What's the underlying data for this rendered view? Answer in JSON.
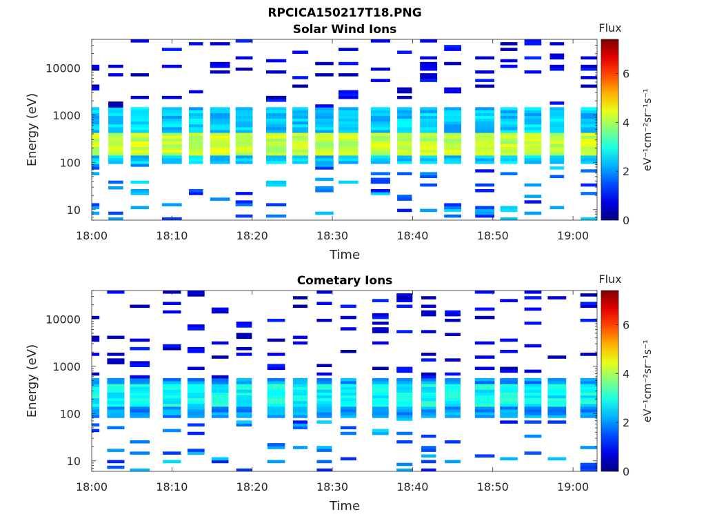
{
  "figure": {
    "file_title": "RPCICA150217T18.PNG",
    "colorbar_label": "Flux",
    "colorbar_unit": "eV⁻¹cm⁻²sr⁻¹s⁻¹",
    "colormap": "jet"
  },
  "chart_data": [
    {
      "type": "heatmap",
      "title": "Solar Wind Ions",
      "xlabel": "Time",
      "ylabel": "Energy (eV)",
      "y_scale": "log",
      "ylim": [
        6,
        40000
      ],
      "xlim": [
        "18:00",
        "19:03"
      ],
      "x_ticks": [
        "18:00",
        "18:10",
        "18:20",
        "18:30",
        "18:40",
        "18:50",
        "19:00"
      ],
      "y_ticks": [
        "10",
        "100",
        "1000",
        "10000"
      ],
      "colorbar": {
        "label": "Flux",
        "range": [
          0,
          7.4
        ],
        "ticks": [
          "0",
          "2",
          "4",
          "6"
        ]
      },
      "time_columns": [
        "18:00",
        "18:03",
        "18:06",
        "18:10",
        "18:13",
        "18:16",
        "18:19",
        "18:23",
        "18:26",
        "18:29",
        "18:32",
        "18:36",
        "18:39",
        "18:42",
        "18:45",
        "18:49",
        "18:52",
        "18:55",
        "18:58",
        "19:02"
      ],
      "energy_band": {
        "core_low_eV": 100,
        "core_high_eV": 1500,
        "peak_low_eV": 150,
        "peak_high_eV": 450,
        "peak_flux": 4.6,
        "core_flux": 2.8
      }
    },
    {
      "type": "heatmap",
      "title": "Cometary Ions",
      "xlabel": "Time",
      "ylabel": "Energy (eV)",
      "y_scale": "log",
      "ylim": [
        6,
        40000
      ],
      "xlim": [
        "18:00",
        "19:03"
      ],
      "x_ticks": [
        "18:00",
        "18:10",
        "18:20",
        "18:30",
        "18:40",
        "18:50",
        "19:00"
      ],
      "y_ticks": [
        "10",
        "100",
        "1000",
        "10000"
      ],
      "colorbar": {
        "label": "Flux",
        "range": [
          0,
          7.4
        ],
        "ticks": [
          "0",
          "2",
          "4",
          "6"
        ]
      },
      "time_columns": [
        "18:00",
        "18:03",
        "18:06",
        "18:10",
        "18:13",
        "18:16",
        "18:19",
        "18:23",
        "18:26",
        "18:29",
        "18:32",
        "18:36",
        "18:39",
        "18:42",
        "18:45",
        "18:49",
        "18:52",
        "18:55",
        "18:58",
        "19:02"
      ],
      "energy_band": {
        "core_low_eV": 80,
        "core_high_eV": 600,
        "peak_low_eV": 150,
        "peak_high_eV": 400,
        "peak_flux": 3.2,
        "core_flux": 2.4
      }
    }
  ]
}
